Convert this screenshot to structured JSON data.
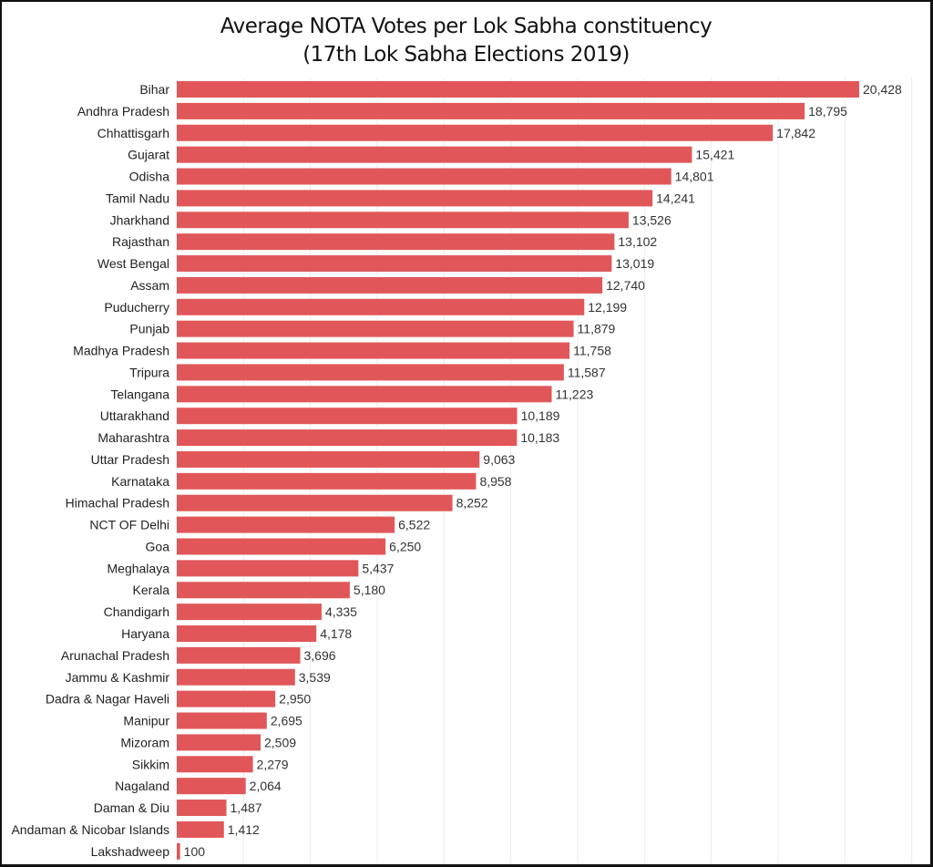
{
  "chart_data": {
    "type": "bar",
    "orientation": "horizontal",
    "title": "Average NOTA Votes per Lok Sabha constituency",
    "subtitle": "(17th Lok Sabha Elections 2019)",
    "xlabel": "",
    "ylabel": "",
    "xlim": [
      0,
      22000
    ],
    "grid": true,
    "bar_color": "#e15759",
    "categories": [
      "Bihar",
      "Andhra Pradesh",
      "Chhattisgarh",
      "Gujarat",
      "Odisha",
      "Tamil Nadu",
      "Jharkhand",
      "Rajasthan",
      "West Bengal",
      "Assam",
      "Puducherry",
      "Punjab",
      "Madhya Pradesh",
      "Tripura",
      "Telangana",
      "Uttarakhand",
      "Maharashtra",
      "Uttar Pradesh",
      "Karnataka",
      "Himachal Pradesh",
      "NCT OF Delhi",
      "Goa",
      "Meghalaya",
      "Kerala",
      "Chandigarh",
      "Haryana",
      "Arunachal Pradesh",
      "Jammu & Kashmir",
      "Dadra & Nagar Haveli",
      "Manipur",
      "Mizoram",
      "Sikkim",
      "Nagaland",
      "Daman & Diu",
      "Andaman & Nicobar Islands",
      "Lakshadweep"
    ],
    "values": [
      20428,
      18795,
      17842,
      15421,
      14801,
      14241,
      13526,
      13102,
      13019,
      12740,
      12199,
      11879,
      11758,
      11587,
      11223,
      10189,
      10183,
      9063,
      8958,
      8252,
      6522,
      6250,
      5437,
      5180,
      4335,
      4178,
      3696,
      3539,
      2950,
      2695,
      2509,
      2279,
      2064,
      1487,
      1412,
      100
    ]
  }
}
